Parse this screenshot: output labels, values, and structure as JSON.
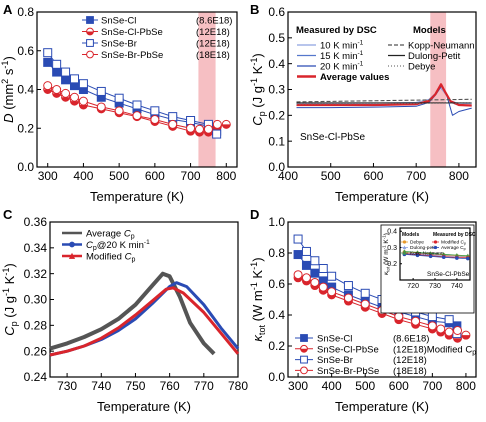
{
  "panels": {
    "A": {
      "letter": "A",
      "xlabel": "Temperature (K)",
      "ylabel_main": "D",
      "ylabel_unit": " (mm",
      "ylabel_sup1": "2",
      "ylabel_mid": " s",
      "ylabel_sup2": "-1",
      "ylabel_end": ")",
      "xlim": [
        270,
        830
      ],
      "ylim": [
        0.0,
        0.8
      ],
      "xticks": [
        "300",
        "400",
        "500",
        "600",
        "700",
        "800"
      ],
      "yticks": [
        "0.0",
        "0.2",
        "0.4",
        "0.6",
        "0.8"
      ],
      "legend": [
        {
          "name": "SnSe-Cl",
          "note": "(8.6E18)"
        },
        {
          "name": "SnSe-Cl-PbSe",
          "note": "(12E18)"
        },
        {
          "name": "SnSe-Br",
          "note": "(12E18)"
        },
        {
          "name": "SnSe-Br-PbSe",
          "note": "(18E18)"
        }
      ]
    },
    "B": {
      "letter": "B",
      "xlabel": "Temperature (K)",
      "ylabel_main": "C",
      "ylabel_sub": "p",
      "ylabel_unit": " (J g",
      "ylabel_sup1": "-1",
      "ylabel_mid": " K",
      "ylabel_sup2": "-1",
      "ylabel_end": ")",
      "xlim": [
        400,
        840
      ],
      "ylim": [
        0.0,
        0.6
      ],
      "xticks": [
        "400",
        "500",
        "600",
        "700",
        "800"
      ],
      "yticks": [
        "0.0",
        "0.1",
        "0.2",
        "0.3",
        "0.4",
        "0.5",
        "0.6"
      ],
      "dsc_title": "Measured by DSC",
      "models_title": "Models",
      "dsc_items": [
        "10 K min",
        "15 K min",
        "20 K min",
        "Average values"
      ],
      "dsc_sup": "-1",
      "model_items": [
        "Kopp-Neumann",
        "Dulong-Petit",
        "Debye"
      ],
      "sample_label": "SnSe-Cl-PbSe"
    },
    "C": {
      "letter": "C",
      "xlabel": "Temperature (K)",
      "ylabel_main": "C",
      "ylabel_sub": "p",
      "ylabel_unit": " (J g",
      "ylabel_sup1": "-1",
      "ylabel_mid": " K",
      "ylabel_sup2": "-1",
      "ylabel_end": ")",
      "xlim": [
        725,
        780
      ],
      "ylim": [
        0.24,
        0.36
      ],
      "xticks": [
        "730",
        "740",
        "750",
        "760",
        "770",
        "780"
      ],
      "yticks": [
        "0.24",
        "0.26",
        "0.28",
        "0.30",
        "0.32",
        "0.34",
        "0.36"
      ],
      "legend": [
        {
          "name": "Average",
          "cp": "C",
          "sub": "p",
          "suffix": ""
        },
        {
          "name": "",
          "cp": "C",
          "sub": "p",
          "suffix": "@20 K min"
        },
        {
          "name": "Modified",
          "cp": "C",
          "sub": "p",
          "suffix": ""
        }
      ],
      "legend_sup": "-1"
    },
    "D": {
      "letter": "D",
      "xlabel": "Temperature (K)",
      "ylabel_main": "κ",
      "ylabel_sub": "tot",
      "ylabel_unit": " (W m",
      "ylabel_sup1": "-1",
      "ylabel_mid": " K",
      "ylabel_sup2": "-1",
      "ylabel_end": ")",
      "xlim": [
        270,
        830
      ],
      "ylim": [
        0.0,
        1.0
      ],
      "xticks": [
        "300",
        "400",
        "500",
        "600",
        "700",
        "800"
      ],
      "yticks": [
        "0.0",
        "0.2",
        "0.4",
        "0.6",
        "0.8",
        "1.0"
      ],
      "legend": [
        {
          "name": "SnSe-Cl",
          "note": "(8.6E18)"
        },
        {
          "name": "SnSe-Cl-PbSe",
          "note": "(12E18)Modified C"
        },
        {
          "name": "SnSe-Br",
          "note": "(12E18)"
        },
        {
          "name": "SnSe-Br-PbSe",
          "note": "(18E18)"
        }
      ],
      "legend_cp_sub": "p",
      "inset": {
        "xlim": [
          714,
          746
        ],
        "ylim": [
          0.1,
          0.42
        ],
        "xticks": [
          "720",
          "730",
          "740"
        ],
        "yticks": [
          "0.2",
          "0.3",
          "0.4"
        ],
        "ylabel_main": "κ",
        "ylabel_sub": "tot",
        "ylabel_unit": " (W m",
        "ylabel_sup1": "-1",
        "ylabel_mid": " K",
        "ylabel_sup2": "-1",
        "ylabel_end": ")",
        "models_title": "Models",
        "dsc_title": "Measured by DSC",
        "model_items": [
          "Debye",
          "Dulong-petit",
          "Kopp-Neumann"
        ],
        "dsc_items": [
          "Modified C",
          "Average C"
        ],
        "dsc_sub": "p",
        "sample_label": "SnSe-Cl-PbSe"
      }
    }
  },
  "colors": {
    "blue": "#2a4bb4",
    "red": "#d9252c",
    "pink_band": "#f4b4b9",
    "grey": "#555555",
    "green": "#3e9b49",
    "orange": "#e89a2c",
    "light_blue": "#8ea2e0",
    "mid_blue": "#5577cc"
  },
  "chart_data": [
    {
      "panel": "A",
      "type": "scatter",
      "xlim": [
        270,
        830
      ],
      "ylim": [
        0.0,
        0.8
      ],
      "highlight_band": [
        722,
        770
      ],
      "series": [
        {
          "name": "SnSe-Cl",
          "marker": "square-filled",
          "color": "#2a4bb4",
          "x": [
            300,
            325,
            350,
            375,
            400,
            450,
            500,
            550,
            600,
            650,
            700,
            750,
            773
          ],
          "y": [
            0.54,
            0.49,
            0.45,
            0.42,
            0.4,
            0.36,
            0.33,
            0.3,
            0.27,
            0.245,
            0.23,
            0.21,
            0.185
          ]
        },
        {
          "name": "SnSe-Cl-PbSe",
          "marker": "circle-half",
          "color": "#d9252c",
          "x": [
            300,
            325,
            350,
            375,
            400,
            450,
            500,
            550,
            600,
            650,
            700,
            725,
            750,
            775,
            800
          ],
          "y": [
            0.4,
            0.38,
            0.36,
            0.34,
            0.32,
            0.3,
            0.28,
            0.26,
            0.235,
            0.21,
            0.185,
            0.18,
            0.18,
            0.21,
            0.22
          ]
        },
        {
          "name": "SnSe-Br",
          "marker": "square-open",
          "color": "#2a4bb4",
          "x": [
            300,
            325,
            350,
            375,
            400,
            450,
            500,
            550,
            600,
            650,
            700,
            750,
            773
          ],
          "y": [
            0.59,
            0.53,
            0.49,
            0.455,
            0.43,
            0.39,
            0.355,
            0.32,
            0.29,
            0.26,
            0.24,
            0.22,
            0.17
          ]
        },
        {
          "name": "SnSe-Br-PbSe",
          "marker": "circle-open",
          "color": "#d9252c",
          "x": [
            300,
            325,
            350,
            375,
            400,
            450,
            500,
            550,
            600,
            650,
            700,
            725,
            750,
            775
          ],
          "y": [
            0.42,
            0.4,
            0.38,
            0.36,
            0.34,
            0.31,
            0.29,
            0.265,
            0.245,
            0.22,
            0.2,
            0.195,
            0.195,
            0.22
          ]
        }
      ]
    },
    {
      "panel": "B",
      "type": "line",
      "xlim": [
        400,
        840
      ],
      "ylim": [
        0.0,
        0.6
      ],
      "highlight_band": [
        733,
        770
      ],
      "series": [
        {
          "name": "10 K min-1",
          "color": "#8ea2e0",
          "x": [
            420,
            500,
            600,
            700,
            730,
            745,
            755,
            765,
            780,
            800,
            830
          ],
          "y": [
            0.246,
            0.246,
            0.247,
            0.25,
            0.262,
            0.285,
            0.31,
            0.29,
            0.255,
            0.247,
            0.245
          ]
        },
        {
          "name": "15 K min-1",
          "color": "#5577cc",
          "x": [
            420,
            500,
            600,
            700,
            730,
            745,
            757,
            767,
            780,
            800,
            830
          ],
          "y": [
            0.238,
            0.238,
            0.239,
            0.242,
            0.255,
            0.28,
            0.318,
            0.29,
            0.25,
            0.239,
            0.236
          ]
        },
        {
          "name": "20 K min-1",
          "color": "#2a4bb4",
          "x": [
            420,
            500,
            600,
            700,
            730,
            745,
            760,
            770,
            785,
            800,
            830
          ],
          "y": [
            0.23,
            0.23,
            0.232,
            0.235,
            0.25,
            0.278,
            0.315,
            0.285,
            0.2,
            0.215,
            0.228
          ]
        },
        {
          "name": "Average values",
          "color": "#d9252c",
          "x": [
            420,
            500,
            600,
            700,
            730,
            745,
            758,
            768,
            780,
            800,
            830
          ],
          "y": [
            0.24,
            0.24,
            0.24,
            0.243,
            0.256,
            0.282,
            0.32,
            0.29,
            0.255,
            0.24,
            0.238
          ]
        },
        {
          "name": "Kopp-Neumann",
          "color": "#555555",
          "dash": "4 2",
          "x": [
            420,
            830
          ],
          "y": [
            0.252,
            0.262
          ]
        },
        {
          "name": "Dulong-Petit",
          "color": "#222222",
          "x": [
            420,
            830
          ],
          "y": [
            0.248,
            0.248
          ]
        },
        {
          "name": "Debye",
          "color": "#777777",
          "dash": "1 2",
          "x": [
            420,
            830
          ],
          "y": [
            0.243,
            0.247
          ]
        }
      ]
    },
    {
      "panel": "C",
      "type": "line",
      "xlim": [
        725,
        780
      ],
      "ylim": [
        0.24,
        0.36
      ],
      "series": [
        {
          "name": "Average Cp",
          "color": "#555555",
          "x": [
            725,
            730,
            735,
            740,
            745,
            750,
            755,
            758,
            760,
            763,
            766,
            770,
            773
          ],
          "y": [
            0.262,
            0.266,
            0.271,
            0.277,
            0.285,
            0.296,
            0.311,
            0.32,
            0.318,
            0.302,
            0.282,
            0.266,
            0.258
          ]
        },
        {
          "name": "Cp@20 K min-1",
          "color": "#2a4bb4",
          "x": [
            725,
            730,
            735,
            740,
            745,
            750,
            755,
            760,
            762,
            765,
            770,
            775,
            780
          ],
          "y": [
            0.257,
            0.26,
            0.264,
            0.269,
            0.276,
            0.285,
            0.297,
            0.31,
            0.313,
            0.31,
            0.296,
            0.278,
            0.262
          ]
        },
        {
          "name": "Modified Cp",
          "color": "#d9252c",
          "x": [
            725,
            730,
            735,
            740,
            745,
            750,
            755,
            759,
            761,
            764,
            770,
            775,
            780
          ],
          "y": [
            0.257,
            0.26,
            0.264,
            0.27,
            0.278,
            0.288,
            0.299,
            0.308,
            0.309,
            0.305,
            0.29,
            0.274,
            0.258
          ]
        }
      ]
    },
    {
      "panel": "D",
      "type": "scatter",
      "xlim": [
        270,
        830
      ],
      "ylim": [
        0.0,
        1.0
      ],
      "series": [
        {
          "name": "SnSe-Cl",
          "marker": "square-filled",
          "color": "#2a4bb4",
          "x": [
            300,
            325,
            350,
            375,
            400,
            450,
            500,
            550,
            600,
            650,
            700,
            750,
            773
          ],
          "y": [
            0.79,
            0.72,
            0.67,
            0.62,
            0.58,
            0.53,
            0.49,
            0.45,
            0.42,
            0.39,
            0.36,
            0.35,
            0.33
          ]
        },
        {
          "name": "SnSe-Cl-PbSe",
          "marker": "circle-half",
          "color": "#d9252c",
          "x": [
            300,
            325,
            350,
            375,
            400,
            450,
            500,
            550,
            600,
            650,
            700,
            725,
            750,
            775,
            800
          ],
          "y": [
            0.64,
            0.62,
            0.59,
            0.56,
            0.53,
            0.49,
            0.45,
            0.41,
            0.37,
            0.34,
            0.31,
            0.29,
            0.27,
            0.25,
            0.27
          ]
        },
        {
          "name": "SnSe-Br",
          "marker": "square-open",
          "color": "#2a4bb4",
          "x": [
            300,
            325,
            350,
            375,
            400,
            450,
            500,
            550,
            600,
            650,
            700,
            750,
            773
          ],
          "y": [
            0.89,
            0.81,
            0.75,
            0.7,
            0.65,
            0.59,
            0.54,
            0.5,
            0.46,
            0.42,
            0.39,
            0.37,
            0.28
          ]
        },
        {
          "name": "SnSe-Br-PbSe",
          "marker": "circle-open",
          "color": "#d9252c",
          "x": [
            300,
            325,
            350,
            375,
            400,
            450,
            500,
            550,
            600,
            650,
            700,
            725,
            750,
            775
          ],
          "y": [
            0.66,
            0.64,
            0.61,
            0.58,
            0.55,
            0.51,
            0.47,
            0.43,
            0.39,
            0.36,
            0.33,
            0.31,
            0.29,
            0.3
          ]
        }
      ],
      "inset": {
        "xlim": [
          714,
          746
        ],
        "ylim": [
          0.1,
          0.42
        ],
        "series": [
          {
            "name": "Debye",
            "color": "#e89a2c",
            "marker": "circle-small",
            "x": [
              716,
              722,
              728,
              734,
              740,
              745
            ],
            "y": [
              0.272,
              0.266,
              0.26,
              0.254,
              0.249,
              0.245
            ]
          },
          {
            "name": "Dulong-petit",
            "color": "#8ea2e0",
            "marker": "triangle-small",
            "x": [
              716,
              722,
              728,
              734,
              740,
              745
            ],
            "y": [
              0.268,
              0.262,
              0.256,
              0.25,
              0.245,
              0.241
            ]
          },
          {
            "name": "Kopp-Neumann",
            "color": "#3e9b49",
            "marker": "triangle-small",
            "x": [
              716,
              722,
              728,
              734,
              740,
              745
            ],
            "y": [
              0.276,
              0.27,
              0.264,
              0.258,
              0.253,
              0.249
            ]
          },
          {
            "name": "Modified Cp",
            "color": "#d9252c",
            "marker": "circle-small",
            "x": [
              716,
              722,
              728,
              734,
              740,
              745
            ],
            "y": [
              0.262,
              0.256,
              0.25,
              0.244,
              0.239,
              0.236
            ]
          },
          {
            "name": "Average Cp",
            "color": "#2a4bb4",
            "marker": "circle-small",
            "x": [
              716,
              722,
              728,
              734,
              740,
              745
            ],
            "y": [
              0.258,
              0.252,
              0.246,
              0.24,
              0.235,
              0.232
            ]
          }
        ]
      }
    }
  ]
}
